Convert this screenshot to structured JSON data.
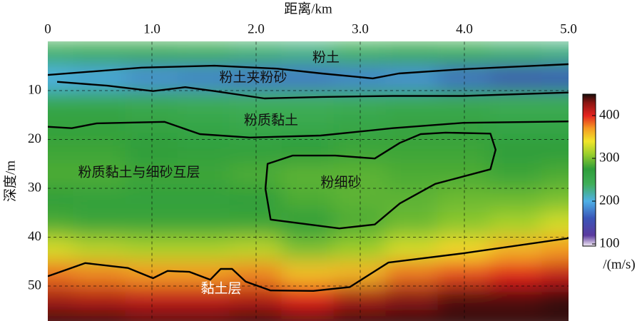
{
  "chart_data": {
    "type": "heatmap",
    "title": "距离/km",
    "ylabel": "深度/m",
    "colorbar_label": "/(m/s)",
    "x": [
      0,
      0.5,
      1,
      1.5,
      2,
      2.5,
      3,
      3.5,
      4,
      4.5,
      5
    ],
    "y": [
      2.5,
      7.5,
      12.5,
      17.5,
      22.5,
      27.5,
      32.5,
      37.5,
      42.5,
      47.5,
      52.5,
      57.5
    ],
    "z": [
      [
        245,
        250,
        250,
        245,
        235,
        230,
        240,
        250,
        245,
        235,
        230
      ],
      [
        200,
        195,
        185,
        180,
        175,
        175,
        180,
        185,
        170,
        155,
        160
      ],
      [
        255,
        255,
        250,
        245,
        240,
        240,
        245,
        250,
        250,
        245,
        245
      ],
      [
        270,
        270,
        265,
        260,
        255,
        255,
        260,
        265,
        265,
        260,
        260
      ],
      [
        280,
        280,
        275,
        270,
        270,
        275,
        280,
        280,
        280,
        275,
        275
      ],
      [
        285,
        285,
        280,
        280,
        285,
        290,
        290,
        285,
        285,
        280,
        285
      ],
      [
        275,
        270,
        270,
        270,
        275,
        285,
        290,
        290,
        295,
        295,
        300
      ],
      [
        285,
        280,
        280,
        280,
        280,
        275,
        285,
        295,
        305,
        315,
        330
      ],
      [
        330,
        320,
        315,
        315,
        320,
        300,
        310,
        330,
        345,
        360,
        370
      ],
      [
        380,
        375,
        370,
        370,
        375,
        355,
        360,
        380,
        390,
        400,
        410
      ],
      [
        420,
        415,
        410,
        410,
        415,
        400,
        420,
        430,
        440,
        440,
        445
      ],
      [
        445,
        445,
        440,
        440,
        445,
        440,
        445,
        445,
        445,
        445,
        445
      ]
    ],
    "xlim": [
      0,
      5
    ],
    "ylim": [
      0,
      57
    ],
    "y_inverted": true,
    "xaxis_position": "top",
    "xticks": [
      0,
      {
        "value": 1,
        "label": "1.0"
      },
      {
        "value": 2,
        "label": "2.0"
      },
      {
        "value": 3,
        "label": "3.0"
      },
      {
        "value": 4,
        "label": "4.0"
      },
      {
        "value": 5,
        "label": "5.0"
      }
    ],
    "yticks": [
      10,
      20,
      30,
      40,
      50
    ],
    "grid": true,
    "clim": [
      95,
      450
    ],
    "cticks": [
      100,
      200,
      300,
      400
    ],
    "colorscale": [
      {
        "value": 95,
        "color": "#f4ecf6"
      },
      {
        "value": 120,
        "color": "#5b3a9e"
      },
      {
        "value": 160,
        "color": "#3a55b8"
      },
      {
        "value": 200,
        "color": "#4fb0e6"
      },
      {
        "value": 240,
        "color": "#3fae58"
      },
      {
        "value": 275,
        "color": "#2f9e3a"
      },
      {
        "value": 310,
        "color": "#9bcf2c"
      },
      {
        "value": 340,
        "color": "#f1e52a"
      },
      {
        "value": 370,
        "color": "#f59b22"
      },
      {
        "value": 400,
        "color": "#e4231f"
      },
      {
        "value": 430,
        "color": "#8a1512"
      },
      {
        "value": 450,
        "color": "#1a0d0b"
      }
    ],
    "boundaries": [
      {
        "x": [
          0,
          0.9,
          1.6,
          2.2,
          2.63,
          3.12,
          3.37,
          3.99,
          5.0
        ],
        "y": [
          6.8,
          5.3,
          4.9,
          5.5,
          6.5,
          7.5,
          6.5,
          5.6,
          4.6
        ]
      },
      {
        "x": [
          0.09,
          0.57,
          1.01,
          1.32,
          1.6,
          2.08,
          2.63,
          3.31,
          3.99,
          5.0
        ],
        "y": [
          8.2,
          9.0,
          10.1,
          9.3,
          10.1,
          11.6,
          11.3,
          11.1,
          11.1,
          10.4
        ]
      },
      {
        "x": [
          0,
          0.23,
          0.47,
          1.12,
          1.46,
          1.94,
          2.62,
          3.31,
          3.99,
          5.0
        ],
        "y": [
          17.4,
          17.7,
          16.7,
          16.4,
          18.9,
          19.6,
          19.2,
          17.7,
          16.6,
          16.3
        ]
      },
      {
        "x": [
          2.11,
          2.35,
          2.76,
          3.14,
          3.38,
          3.58,
          3.82,
          4.25,
          4.3,
          4.25,
          3.72,
          3.38,
          3.14,
          2.8,
          2.14,
          2.09
        ],
        "y": [
          25.0,
          23.3,
          23.3,
          23.9,
          20.7,
          18.9,
          18.6,
          18.8,
          22.1,
          26.1,
          29.1,
          33.1,
          37.4,
          38.2,
          36.4,
          30.1
        ],
        "closed": true
      },
      {
        "x": [
          0,
          0.36,
          0.77,
          1.01,
          1.15,
          1.36,
          1.56,
          1.66,
          1.77,
          1.9,
          2.14,
          2.55,
          2.9,
          3.27,
          3.99,
          5.0
        ],
        "y": [
          48.0,
          45.3,
          46.3,
          48.4,
          46.9,
          47.1,
          48.7,
          46.5,
          46.5,
          49.1,
          50.9,
          51.0,
          50.2,
          45.2,
          43.3,
          40.2
        ]
      }
    ],
    "annotations": [
      "粉土",
      "粉土夹粉砂",
      "粉质黏土",
      "粉质黏土与细砂互层",
      "粉细砂",
      "黏土层"
    ]
  }
}
